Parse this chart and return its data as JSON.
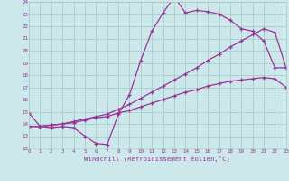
{
  "xlabel": "Windchill (Refroidissement éolien,°C)",
  "bg_color": "#cce8ea",
  "grid_color": "#aacccc",
  "line_color": "#993399",
  "xmin": 0,
  "xmax": 23,
  "ymin": 12,
  "ymax": 24,
  "line1_x": [
    0,
    1,
    2,
    3,
    4,
    5,
    6,
    7,
    8,
    9,
    10,
    11,
    12,
    13,
    14,
    15,
    16,
    17,
    18,
    19,
    20,
    21,
    22,
    23
  ],
  "line1_y": [
    14.9,
    13.8,
    13.7,
    13.8,
    13.7,
    13.0,
    12.4,
    12.3,
    14.8,
    16.4,
    19.2,
    21.6,
    23.1,
    24.4,
    23.1,
    23.3,
    23.2,
    23.0,
    22.5,
    21.8,
    21.6,
    20.8,
    18.6,
    18.6
  ],
  "line2_x": [
    0,
    1,
    2,
    3,
    4,
    5,
    6,
    7,
    8,
    9,
    10,
    11,
    12,
    13,
    14,
    15,
    16,
    17,
    18,
    19,
    20,
    21,
    22,
    23
  ],
  "line2_y": [
    13.8,
    13.8,
    13.9,
    14.0,
    14.2,
    14.4,
    14.6,
    14.8,
    15.2,
    15.6,
    16.1,
    16.6,
    17.1,
    17.6,
    18.1,
    18.6,
    19.2,
    19.7,
    20.3,
    20.8,
    21.3,
    21.8,
    21.5,
    18.6
  ],
  "line3_x": [
    0,
    1,
    2,
    3,
    4,
    5,
    6,
    7,
    8,
    9,
    10,
    11,
    12,
    13,
    14,
    15,
    16,
    17,
    18,
    19,
    20,
    21,
    22,
    23
  ],
  "line3_y": [
    13.8,
    13.8,
    13.9,
    14.0,
    14.1,
    14.3,
    14.5,
    14.6,
    14.9,
    15.1,
    15.4,
    15.7,
    16.0,
    16.3,
    16.6,
    16.8,
    17.1,
    17.3,
    17.5,
    17.6,
    17.7,
    17.8,
    17.7,
    17.0
  ],
  "xtick_labels": [
    "0",
    "1",
    "2",
    "3",
    "4",
    "5",
    "6",
    "7",
    "8",
    "9",
    "10",
    "11",
    "12",
    "13",
    "14",
    "15",
    "16",
    "17",
    "18",
    "19",
    "20",
    "21",
    "22",
    "23"
  ],
  "ytick_labels": [
    "12",
    "13",
    "14",
    "15",
    "16",
    "17",
    "18",
    "19",
    "20",
    "21",
    "22",
    "23",
    "24"
  ]
}
